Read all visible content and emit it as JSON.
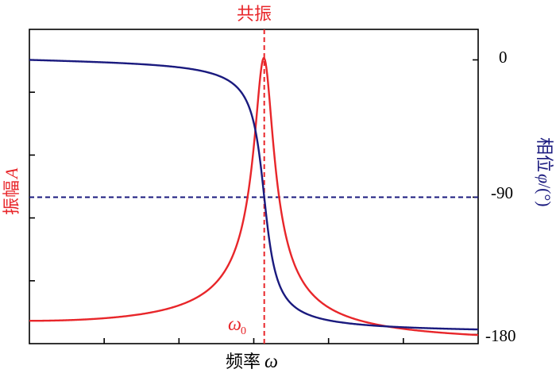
{
  "chart_data": {
    "type": "line",
    "title": "",
    "resonance_label": "共振",
    "xlabel": {
      "text": "频率",
      "symbol": "ω"
    },
    "ylabel_left": {
      "text": "振幅",
      "symbol": "A"
    },
    "ylabel_right": {
      "text": "相位",
      "symbol": "φ",
      "unit": "/(°)"
    },
    "omega0_label": {
      "symbol": "ω",
      "sub": "0"
    },
    "right_ticks": [
      "0",
      "-90",
      "-180"
    ],
    "right_tick_values": [
      0,
      -90,
      -180
    ],
    "ylim_right": [
      -186,
      20
    ],
    "xlim": [
      0,
      3
    ],
    "omega0": 1.57,
    "damping_ratio": 0.04,
    "colors": {
      "amplitude": "#e8262a",
      "phase": "#1a1a7e",
      "axes": "#000000"
    },
    "series": [
      {
        "name": "振幅A",
        "axis": "left",
        "color": "#e8262a"
      },
      {
        "name": "相位φ",
        "axis": "right",
        "color": "#1a1a7e"
      }
    ],
    "reference_lines": [
      {
        "orientation": "vertical",
        "at": "ω0",
        "color": "#e8262a",
        "style": "dashed"
      },
      {
        "orientation": "horizontal",
        "at": -90,
        "axis": "right",
        "color": "#1a1a7e",
        "style": "dashed"
      }
    ],
    "grid": false,
    "legend": "none"
  }
}
